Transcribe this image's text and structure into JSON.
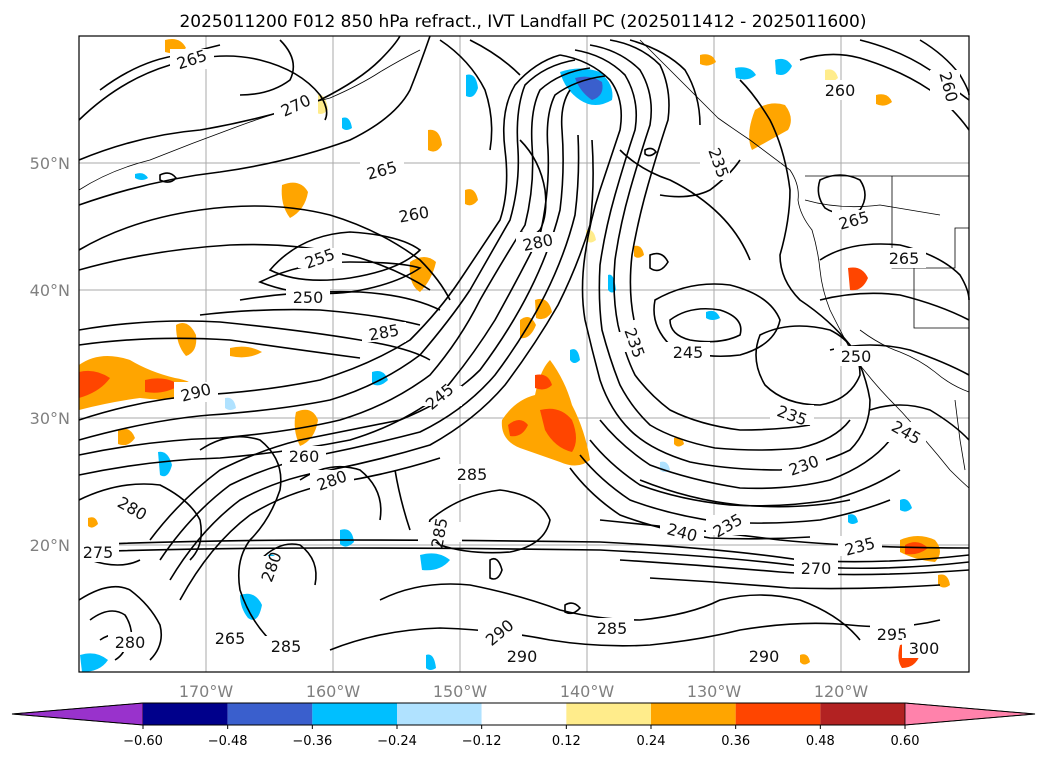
{
  "title": "2025011200 F012 850 hPa refract., IVT Landfall PC (2025011412 - 2025011600)",
  "lat_ticks": [
    "50°N",
    "40°N",
    "30°N",
    "20°N"
  ],
  "lon_ticks": [
    "170°W",
    "160°W",
    "150°W",
    "140°W",
    "130°W",
    "120°W"
  ],
  "colorbar": {
    "levels": [
      "−0.60",
      "−0.48",
      "−0.36",
      "−0.24",
      "−0.12",
      "0.12",
      "0.24",
      "0.36",
      "0.48",
      "0.60"
    ],
    "colors": [
      "#9932cc",
      "#00008b",
      "#3a5fcd",
      "#00bfff",
      "#b0e2ff",
      "#ffffff",
      "#ffec8b",
      "#ffa500",
      "#ff4500",
      "#b22222",
      "#ff82ab"
    ]
  },
  "contour_labels": [
    "265",
    "270",
    "265",
    "260",
    "255",
    "250",
    "285",
    "290",
    "280",
    "280",
    "285",
    "235",
    "245",
    "245",
    "260",
    "280",
    "285",
    "275",
    "280",
    "235",
    "230",
    "240",
    "235",
    "270",
    "235",
    "285",
    "280",
    "265",
    "285",
    "290",
    "290",
    "290",
    "295",
    "300",
    "265",
    "265",
    "260",
    "260",
    "250",
    "245",
    "235"
  ]
}
